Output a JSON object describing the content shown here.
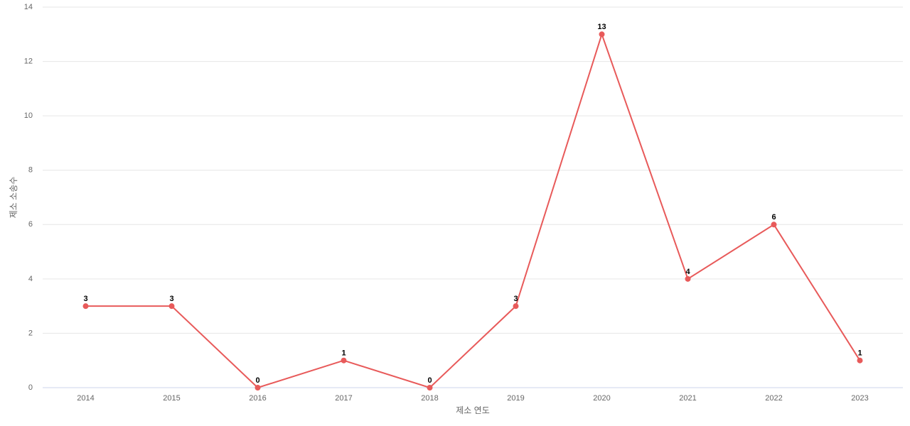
{
  "chart_data": {
    "type": "line",
    "x_label": "제소 연도",
    "y_label": "제소 소송수",
    "categories": [
      "2014",
      "2015",
      "2016",
      "2017",
      "2018",
      "2019",
      "2020",
      "2021",
      "2022",
      "2023"
    ],
    "series": [
      {
        "color": "#e85a5a",
        "values": [
          3,
          3,
          0,
          1,
          0,
          3,
          13,
          4,
          6,
          1
        ]
      }
    ],
    "ylim": [
      0,
      14
    ],
    "yticks": [
      0,
      2,
      4,
      6,
      8,
      10,
      12,
      14
    ],
    "grid": true
  }
}
